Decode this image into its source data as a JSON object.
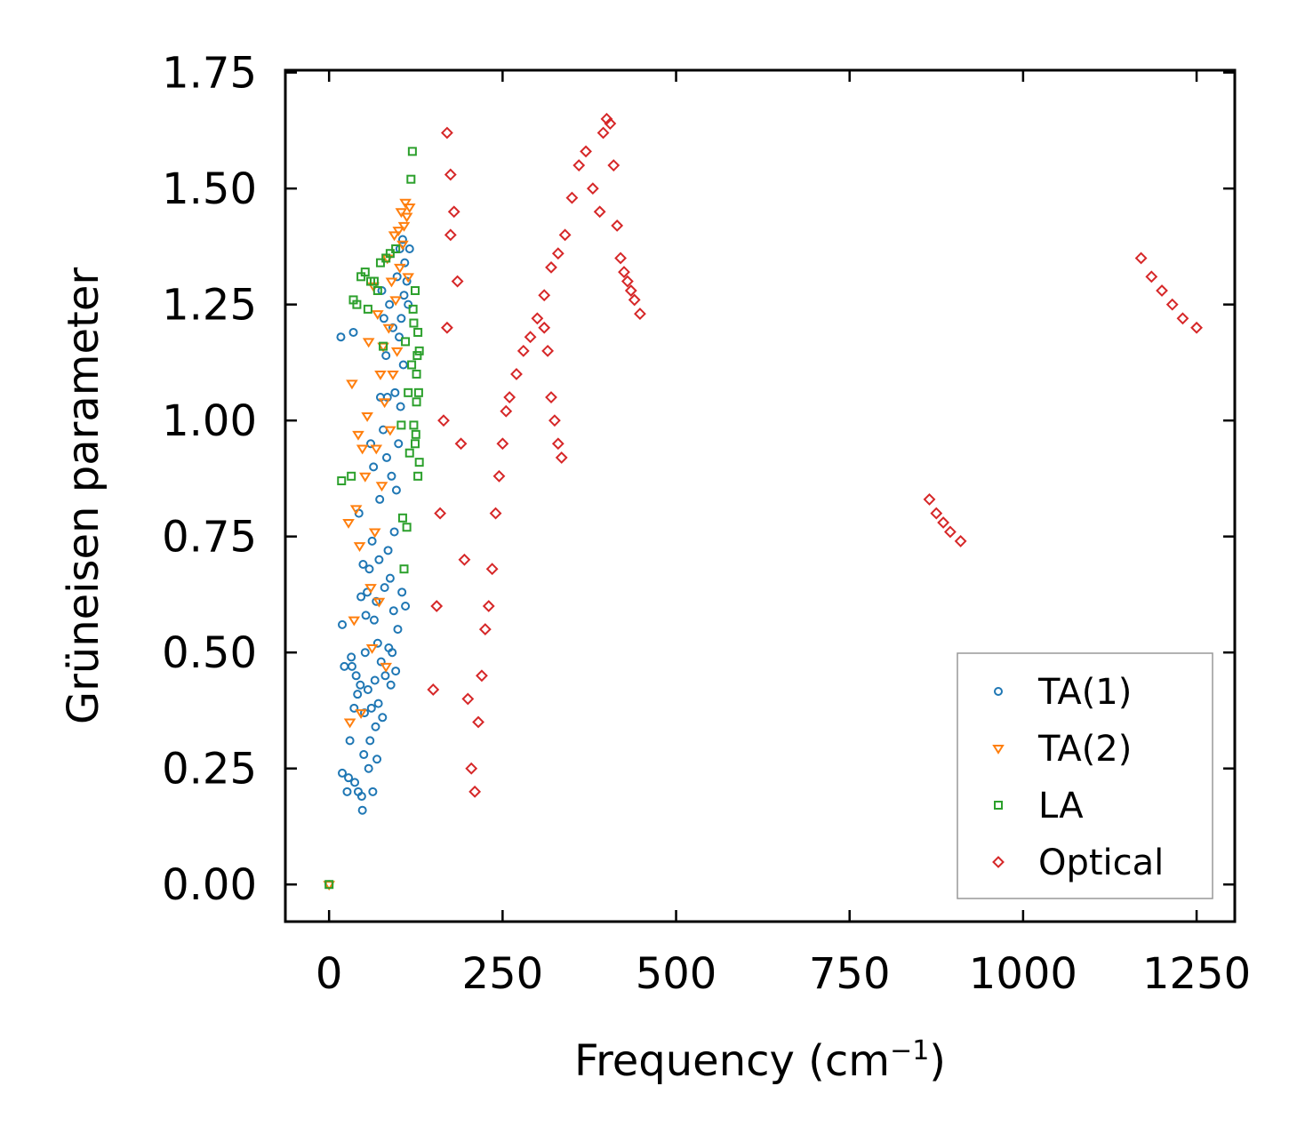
{
  "chart_data": {
    "type": "scatter",
    "title": "",
    "xlabel": "Frequency (cm",
    "xlabel_superscript": "−1",
    "xlabel_suffix": ")",
    "ylabel": "Grüneisen parameter",
    "xlim": [
      -63,
      1305
    ],
    "ylim": [
      -0.08,
      1.755
    ],
    "xticks": [
      0,
      250,
      500,
      750,
      1000,
      1250
    ],
    "xtick_labels": [
      "0",
      "250",
      "500",
      "750",
      "1000",
      "1250"
    ],
    "yticks": [
      0.0,
      0.25,
      0.5,
      0.75,
      1.0,
      1.25,
      1.5,
      1.75
    ],
    "ytick_labels": [
      "0.00",
      "0.25",
      "0.50",
      "0.75",
      "1.00",
      "1.25",
      "1.50",
      "1.75"
    ],
    "grid": false,
    "legend_position": "bottom-right",
    "series": [
      {
        "name": "TA(1)",
        "marker": "circle",
        "color": "#1f77b4",
        "points": [
          [
            0,
            0.0
          ],
          [
            17,
            1.18
          ],
          [
            19,
            0.56
          ],
          [
            19,
            0.24
          ],
          [
            22,
            0.47
          ],
          [
            26,
            0.2
          ],
          [
            28,
            0.23
          ],
          [
            30,
            0.31
          ],
          [
            32,
            0.49
          ],
          [
            33,
            0.47
          ],
          [
            35,
            1.19
          ],
          [
            36,
            0.38
          ],
          [
            37,
            0.22
          ],
          [
            39,
            0.45
          ],
          [
            41,
            0.41
          ],
          [
            42,
            0.2
          ],
          [
            43,
            0.8
          ],
          [
            45,
            0.43
          ],
          [
            46,
            0.62
          ],
          [
            47,
            0.19
          ],
          [
            48,
            0.16
          ],
          [
            49,
            0.69
          ],
          [
            50,
            0.28
          ],
          [
            51,
            0.37
          ],
          [
            52,
            0.5
          ],
          [
            53,
            0.58
          ],
          [
            55,
            0.63
          ],
          [
            56,
            0.42
          ],
          [
            57,
            0.25
          ],
          [
            58,
            0.68
          ],
          [
            59,
            0.31
          ],
          [
            60,
            0.95
          ],
          [
            61,
            0.38
          ],
          [
            62,
            0.74
          ],
          [
            63,
            0.2
          ],
          [
            64,
            0.9
          ],
          [
            65,
            0.57
          ],
          [
            66,
            0.44
          ],
          [
            67,
            0.34
          ],
          [
            68,
            0.61
          ],
          [
            69,
            0.27
          ],
          [
            70,
            0.52
          ],
          [
            71,
            0.39
          ],
          [
            72,
            0.7
          ],
          [
            73,
            0.83
          ],
          [
            74,
            1.05
          ],
          [
            75,
            0.48
          ],
          [
            76,
            1.28
          ],
          [
            77,
            0.36
          ],
          [
            78,
            0.98
          ],
          [
            79,
            1.22
          ],
          [
            80,
            0.64
          ],
          [
            81,
            0.45
          ],
          [
            82,
            1.14
          ],
          [
            83,
            0.92
          ],
          [
            84,
            1.05
          ],
          [
            85,
            0.72
          ],
          [
            86,
            0.51
          ],
          [
            87,
            1.25
          ],
          [
            88,
            0.66
          ],
          [
            89,
            0.43
          ],
          [
            90,
            0.88
          ],
          [
            91,
            0.5
          ],
          [
            92,
            1.2
          ],
          [
            93,
            0.59
          ],
          [
            94,
            0.76
          ],
          [
            95,
            1.06
          ],
          [
            96,
            0.46
          ],
          [
            97,
            0.85
          ],
          [
            98,
            1.31
          ],
          [
            99,
            0.55
          ],
          [
            100,
            0.95
          ],
          [
            101,
            1.18
          ],
          [
            102,
            1.37
          ],
          [
            103,
            1.03
          ],
          [
            104,
            1.22
          ],
          [
            105,
            0.63
          ],
          [
            106,
            1.39
          ],
          [
            107,
            1.12
          ],
          [
            108,
            1.27
          ],
          [
            109,
            1.34
          ],
          [
            110,
            0.6
          ],
          [
            112,
            1.3
          ],
          [
            114,
            1.25
          ],
          [
            116,
            1.37
          ]
        ]
      },
      {
        "name": "TA(2)",
        "marker": "triangle",
        "color": "#ff7f0e",
        "points": [
          [
            0,
            0.0
          ],
          [
            28,
            0.78
          ],
          [
            30,
            0.35
          ],
          [
            33,
            1.08
          ],
          [
            36,
            0.57
          ],
          [
            39,
            0.81
          ],
          [
            42,
            0.97
          ],
          [
            44,
            0.73
          ],
          [
            46,
            0.37
          ],
          [
            48,
            0.94
          ],
          [
            52,
            0.88
          ],
          [
            55,
            1.01
          ],
          [
            57,
            1.17
          ],
          [
            60,
            0.64
          ],
          [
            62,
            0.51
          ],
          [
            64,
            1.29
          ],
          [
            66,
            0.76
          ],
          [
            68,
            0.94
          ],
          [
            70,
            1.23
          ],
          [
            72,
            0.61
          ],
          [
            74,
            1.1
          ],
          [
            76,
            0.86
          ],
          [
            78,
            1.16
          ],
          [
            80,
            1.04
          ],
          [
            82,
            0.47
          ],
          [
            84,
            1.35
          ],
          [
            86,
            1.2
          ],
          [
            88,
            0.98
          ],
          [
            90,
            1.3
          ],
          [
            92,
            1.1
          ],
          [
            94,
            1.4
          ],
          [
            96,
            1.26
          ],
          [
            98,
            1.15
          ],
          [
            100,
            1.41
          ],
          [
            102,
            1.33
          ],
          [
            104,
            1.45
          ],
          [
            106,
            1.38
          ],
          [
            108,
            1.42
          ],
          [
            110,
            1.47
          ],
          [
            112,
            1.44
          ],
          [
            114,
            1.31
          ],
          [
            116,
            1.46
          ]
        ]
      },
      {
        "name": "LA",
        "marker": "square",
        "color": "#2ca02c",
        "points": [
          [
            0,
            0.0
          ],
          [
            18,
            0.87
          ],
          [
            32,
            0.88
          ],
          [
            35,
            1.26
          ],
          [
            40,
            1.25
          ],
          [
            46,
            1.31
          ],
          [
            52,
            1.32
          ],
          [
            56,
            1.24
          ],
          [
            60,
            1.3
          ],
          [
            65,
            1.3
          ],
          [
            70,
            1.28
          ],
          [
            74,
            1.34
          ],
          [
            78,
            1.16
          ],
          [
            82,
            1.35
          ],
          [
            88,
            1.36
          ],
          [
            96,
            1.37
          ],
          [
            104,
            0.99
          ],
          [
            106,
            0.79
          ],
          [
            108,
            0.68
          ],
          [
            110,
            1.17
          ],
          [
            112,
            0.77
          ],
          [
            114,
            1.06
          ],
          [
            116,
            0.93
          ],
          [
            118,
            1.52
          ],
          [
            120,
            1.58
          ],
          [
            122,
            1.21
          ],
          [
            124,
            0.95
          ],
          [
            126,
            1.1
          ],
          [
            128,
            0.88
          ],
          [
            130,
            1.15
          ],
          [
            122,
            0.99
          ],
          [
            124,
            1.28
          ],
          [
            126,
            1.04
          ],
          [
            128,
            1.19
          ],
          [
            130,
            0.91
          ],
          [
            119,
            1.12
          ],
          [
            121,
            1.24
          ],
          [
            125,
            0.97
          ],
          [
            127,
            1.14
          ],
          [
            129,
            1.06
          ]
        ]
      },
      {
        "name": "Optical",
        "marker": "diamond",
        "color": "#d62728",
        "points": [
          [
            170,
            1.62
          ],
          [
            175,
            1.53
          ],
          [
            150,
            0.42
          ],
          [
            155,
            0.6
          ],
          [
            160,
            0.8
          ],
          [
            165,
            1.0
          ],
          [
            170,
            1.2
          ],
          [
            175,
            1.4
          ],
          [
            180,
            1.45
          ],
          [
            185,
            1.3
          ],
          [
            190,
            0.95
          ],
          [
            195,
            0.7
          ],
          [
            200,
            0.4
          ],
          [
            205,
            0.25
          ],
          [
            210,
            0.2
          ],
          [
            215,
            0.35
          ],
          [
            220,
            0.45
          ],
          [
            225,
            0.55
          ],
          [
            230,
            0.6
          ],
          [
            235,
            0.68
          ],
          [
            240,
            0.8
          ],
          [
            245,
            0.88
          ],
          [
            250,
            0.95
          ],
          [
            255,
            1.02
          ],
          [
            260,
            1.05
          ],
          [
            270,
            1.1
          ],
          [
            280,
            1.15
          ],
          [
            290,
            1.18
          ],
          [
            300,
            1.22
          ],
          [
            310,
            1.2
          ],
          [
            315,
            1.15
          ],
          [
            320,
            1.05
          ],
          [
            325,
            1.0
          ],
          [
            330,
            0.95
          ],
          [
            335,
            0.92
          ],
          [
            310,
            1.27
          ],
          [
            320,
            1.33
          ],
          [
            330,
            1.36
          ],
          [
            340,
            1.4
          ],
          [
            350,
            1.48
          ],
          [
            360,
            1.55
          ],
          [
            370,
            1.58
          ],
          [
            380,
            1.5
          ],
          [
            390,
            1.45
          ],
          [
            395,
            1.62
          ],
          [
            400,
            1.65
          ],
          [
            405,
            1.64
          ],
          [
            410,
            1.55
          ],
          [
            415,
            1.42
          ],
          [
            420,
            1.35
          ],
          [
            425,
            1.32
          ],
          [
            430,
            1.3
          ],
          [
            435,
            1.28
          ],
          [
            440,
            1.26
          ],
          [
            448,
            1.23
          ],
          [
            865,
            0.83
          ],
          [
            875,
            0.8
          ],
          [
            885,
            0.78
          ],
          [
            895,
            0.76
          ],
          [
            910,
            0.74
          ],
          [
            1170,
            1.35
          ],
          [
            1185,
            1.31
          ],
          [
            1200,
            1.28
          ],
          [
            1215,
            1.25
          ],
          [
            1230,
            1.22
          ],
          [
            1250,
            1.2
          ]
        ]
      }
    ]
  }
}
